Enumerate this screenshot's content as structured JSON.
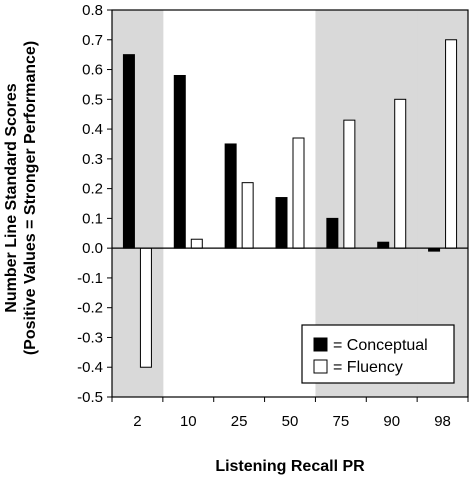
{
  "chart_data": {
    "type": "bar",
    "categories": [
      "2",
      "10",
      "25",
      "50",
      "75",
      "90",
      "98"
    ],
    "series": [
      {
        "name": "= Conceptual",
        "values": [
          0.65,
          0.58,
          0.35,
          0.17,
          0.1,
          0.02,
          -0.01
        ],
        "color": "#000000"
      },
      {
        "name": "= Fluency",
        "values": [
          -0.4,
          0.03,
          0.22,
          0.37,
          0.43,
          0.5,
          0.7
        ],
        "color": "#ffffff"
      }
    ],
    "xlabel": "Listening Recall PR",
    "ylabel_line1": "Number Line Standard Scores",
    "ylabel_line2": "(Positive Values = Stronger Performance)",
    "ylim": [
      -0.5,
      0.8
    ],
    "yticks": [
      "0.8",
      "0.7",
      "0.6",
      "0.5",
      "0.4",
      "0.3",
      "0.2",
      "0.1",
      "0.0",
      "-0.1",
      "-0.2",
      "-0.3",
      "-0.4",
      "-0.5"
    ],
    "shaded_categories": [
      "2",
      "75",
      "90",
      "98"
    ],
    "shade_color": "#d9d9d9",
    "legend_position": "bottom-right",
    "grid": false
  }
}
